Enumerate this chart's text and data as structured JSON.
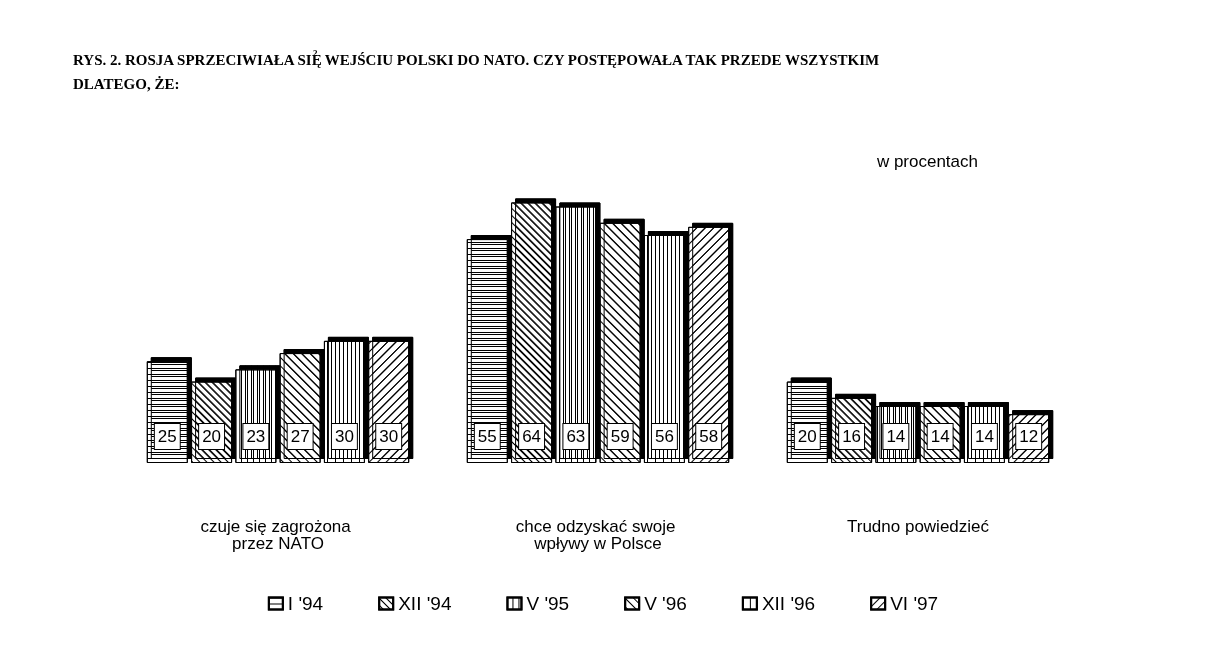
{
  "chart_data": {
    "type": "bar",
    "title": "RYS. 2. ROSJA SPRZECIWIAŁA SIĘ$^{2}$ WEJŚCIU POLSKI DO NATO. CZY POSTĘPOWAŁA TAK PRZEDE WSZYSTKIM DLATEGO, ŻE:",
    "annotations": [
      "w procentach"
    ],
    "categories": [
      "czuje się zagrożona przez NATO",
      "chce odzyskać swoje wpływy w Polsce",
      "Trudno powiedzieć"
    ],
    "series": [
      {
        "name": "I '94",
        "color": "#ffffff",
        "values": [
          25,
          55,
          20
        ]
      },
      {
        "name": "XII '94",
        "color": "#ffffff",
        "values": [
          20,
          64,
          16
        ]
      },
      {
        "name": "V '95",
        "color": "#ffffff",
        "values": [
          23,
          63,
          14
        ]
      },
      {
        "name": "V '96",
        "color": "#ffffff",
        "values": [
          27,
          59,
          14
        ]
      },
      {
        "name": "XII '96",
        "color": "#ffffff",
        "values": [
          30,
          56,
          14
        ]
      },
      {
        "name": "VI '97",
        "color": "#ffffff",
        "values": [
          30,
          58,
          12
        ]
      }
    ],
    "data_labels": true,
    "legend": "bottom"
  }
}
